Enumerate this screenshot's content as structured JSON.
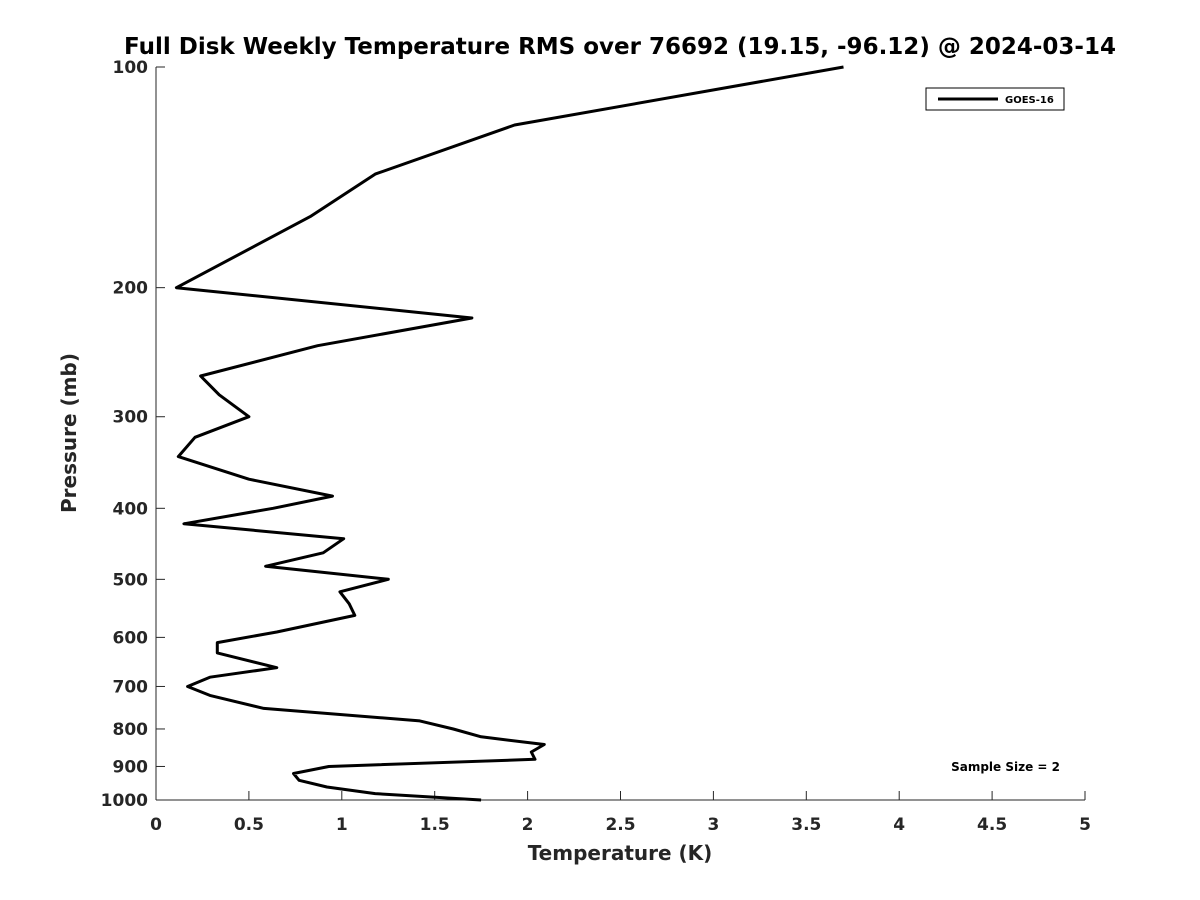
{
  "chart_data": {
    "type": "line",
    "title": "Full Disk Weekly Temperature RMS over 76692 (19.15, -96.12) @ 2024-03-14",
    "xlabel": "Temperature (K)",
    "ylabel": "Pressure (mb)",
    "xlim": [
      0,
      5
    ],
    "ylim": [
      100,
      1000
    ],
    "y_scale": "log",
    "y_reversed": true,
    "xticks": [
      0,
      0.5,
      1,
      1.5,
      2,
      2.5,
      3,
      3.5,
      4,
      4.5,
      5
    ],
    "xtick_labels": [
      "0",
      "0.5",
      "1",
      "1.5",
      "2",
      "2.5",
      "3",
      "3.5",
      "4",
      "4.5",
      "5"
    ],
    "yticks": [
      100,
      200,
      300,
      400,
      500,
      600,
      700,
      800,
      900,
      1000
    ],
    "ytick_labels": [
      "100",
      "200",
      "300",
      "400",
      "500",
      "600",
      "700",
      "800",
      "900",
      "1000"
    ],
    "grid": false,
    "legend_position": "top-right",
    "annotation": "Sample Size = 2",
    "series": [
      {
        "name": "GOES-16",
        "color": "#000000",
        "points": [
          [
            3.7,
            100
          ],
          [
            1.93,
            120
          ],
          [
            1.18,
            140
          ],
          [
            0.83,
            160
          ],
          [
            0.11,
            200
          ],
          [
            1.7,
            220
          ],
          [
            0.87,
            240
          ],
          [
            0.24,
            264
          ],
          [
            0.34,
            280
          ],
          [
            0.5,
            300
          ],
          [
            0.21,
            320
          ],
          [
            0.12,
            340
          ],
          [
            0.5,
            365
          ],
          [
            0.95,
            385
          ],
          [
            0.63,
            400
          ],
          [
            0.15,
            420
          ],
          [
            1.01,
            440
          ],
          [
            0.9,
            460
          ],
          [
            0.59,
            480
          ],
          [
            1.25,
            500
          ],
          [
            0.99,
            520
          ],
          [
            1.04,
            540
          ],
          [
            1.07,
            560
          ],
          [
            0.65,
            590
          ],
          [
            0.33,
            610
          ],
          [
            0.33,
            630
          ],
          [
            0.65,
            660
          ],
          [
            0.29,
            680
          ],
          [
            0.17,
            700
          ],
          [
            0.29,
            720
          ],
          [
            0.58,
            750
          ],
          [
            1.42,
            780
          ],
          [
            1.6,
            800
          ],
          [
            1.75,
            820
          ],
          [
            2.09,
            840
          ],
          [
            2.02,
            860
          ],
          [
            2.04,
            880
          ],
          [
            0.93,
            900
          ],
          [
            0.74,
            920
          ],
          [
            0.77,
            940
          ],
          [
            0.92,
            960
          ],
          [
            1.18,
            980
          ],
          [
            1.75,
            1000
          ]
        ]
      }
    ]
  }
}
